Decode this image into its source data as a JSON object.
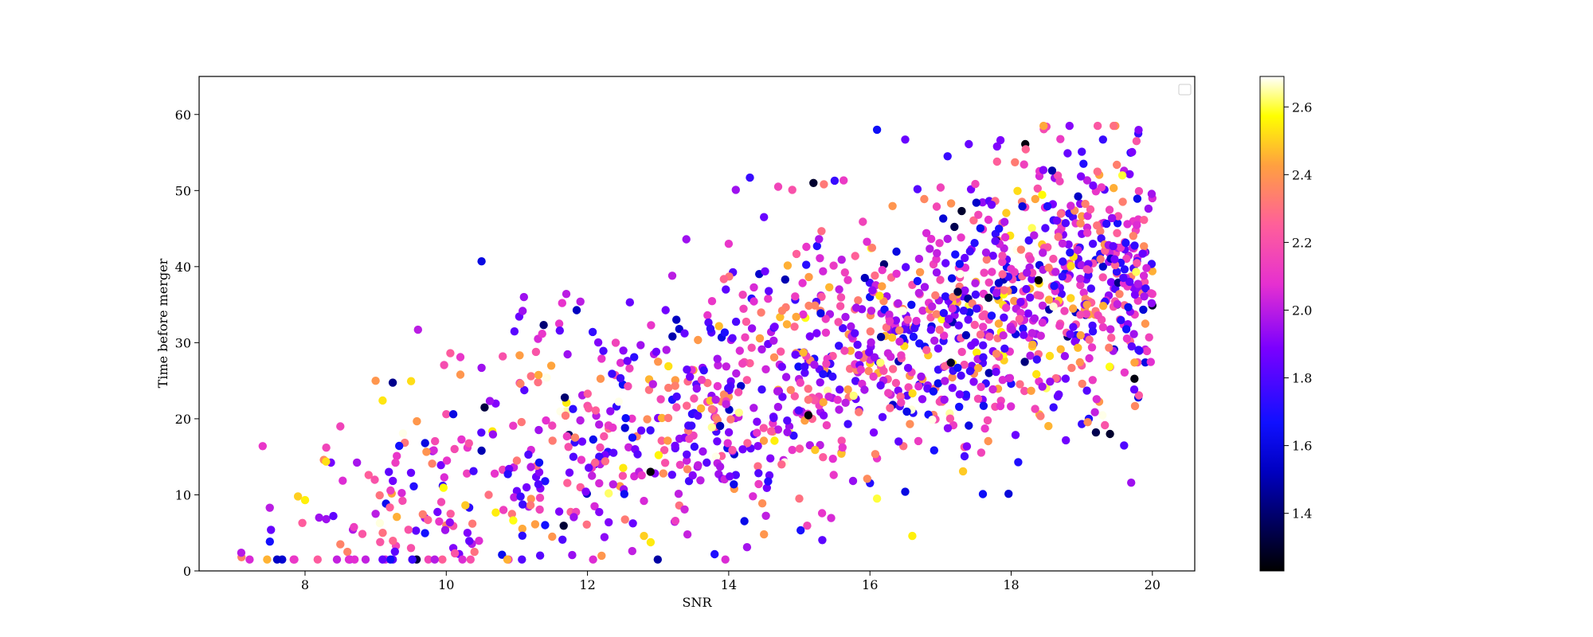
{
  "chart_data": {
    "type": "scatter",
    "title": "",
    "xlabel": "SNR",
    "ylabel": "Time before merger",
    "xlim": [
      6.5,
      20.6
    ],
    "ylim": [
      0,
      65
    ],
    "xticks": [
      8,
      10,
      12,
      14,
      16,
      18,
      20
    ],
    "yticks": [
      0,
      10,
      20,
      30,
      40,
      50,
      60
    ],
    "grid": false,
    "legend": {
      "location": "top-right",
      "entries": []
    },
    "colorbar": {
      "colormap": "gnuplot2",
      "range": [
        1.23,
        2.69
      ],
      "ticks": [
        1.4,
        1.6,
        1.8,
        2.0,
        2.2,
        2.4,
        2.6
      ],
      "tick_labels": [
        "1.4",
        "1.6",
        "1.8",
        "2.0",
        "2.2",
        "2.4",
        "2.6"
      ]
    },
    "colors": {
      "spine": "#000000",
      "background": "#ffffff"
    },
    "series": [
      {
        "marker": "circle",
        "point_count": 1500,
        "points": [
          [
            7.1,
            1.8,
            2.35
          ],
          [
            7.4,
            16.4,
            2.1
          ],
          [
            7.5,
            8.3,
            2.0
          ],
          [
            7.9,
            9.8,
            2.5
          ],
          [
            8.0,
            9.3,
            2.55
          ],
          [
            8.2,
            7.0,
            1.95
          ],
          [
            8.3,
            6.8,
            1.95
          ],
          [
            8.3,
            16.2,
            2.15
          ],
          [
            8.5,
            3.5,
            2.35
          ],
          [
            8.5,
            19.0,
            2.15
          ],
          [
            8.6,
            2.5,
            2.35
          ],
          [
            8.9,
            12.6,
            2.25
          ],
          [
            9.0,
            25.0,
            2.4
          ],
          [
            9.0,
            7.5,
            2.0
          ],
          [
            9.1,
            5.0,
            2.3
          ],
          [
            9.3,
            7.1,
            2.45
          ],
          [
            9.3,
            15.1,
            2.1
          ],
          [
            9.5,
            3.0,
            2.2
          ],
          [
            9.5,
            12.9,
            1.85
          ],
          [
            9.6,
            31.7,
            2.0
          ],
          [
            9.7,
            16.8,
            1.6
          ],
          [
            9.8,
            14.1,
            2.35
          ],
          [
            9.9,
            6.5,
            2.1
          ],
          [
            10.0,
            20.6,
            2.2
          ],
          [
            10.0,
            6.0,
            2.35
          ],
          [
            10.1,
            20.6,
            1.6
          ],
          [
            10.1,
            3.0,
            1.9
          ],
          [
            10.1,
            5.9,
            2.2
          ],
          [
            10.2,
            28.1,
            2.1
          ],
          [
            10.2,
            25.8,
            2.4
          ],
          [
            10.3,
            5.0,
            1.9
          ],
          [
            10.3,
            16.2,
            2.1
          ],
          [
            10.4,
            2.5,
            2.3
          ],
          [
            10.5,
            40.7,
            1.6
          ],
          [
            10.5,
            26.7,
            1.95
          ],
          [
            10.5,
            15.8,
            1.5
          ],
          [
            10.6,
            10.0,
            2.3
          ],
          [
            10.7,
            22.0,
            1.9
          ],
          [
            10.8,
            28.2,
            2.2
          ],
          [
            10.8,
            13.3,
            2.15
          ],
          [
            11.0,
            10.5,
            1.85
          ],
          [
            11.1,
            36.0,
            1.95
          ],
          [
            11.2,
            25.6,
            2.3
          ],
          [
            11.2,
            15.9,
            2.05
          ],
          [
            11.3,
            30.5,
            2.05
          ],
          [
            11.3,
            24.8,
            2.3
          ],
          [
            11.4,
            11.8,
            1.7
          ],
          [
            11.5,
            19.1,
            2.15
          ],
          [
            11.5,
            4.5,
            2.4
          ],
          [
            11.6,
            32.5,
            2.1
          ],
          [
            11.6,
            7.8,
            1.9
          ],
          [
            11.7,
            36.4,
            2.0
          ],
          [
            11.8,
            15.0,
            1.8
          ],
          [
            11.9,
            35.4,
            2.0
          ],
          [
            11.9,
            11.0,
            2.25
          ],
          [
            12.0,
            21.7,
            2.2
          ],
          [
            12.1,
            14.0,
            1.75
          ],
          [
            12.1,
            8.5,
            2.05
          ],
          [
            12.2,
            2.0,
            2.4
          ],
          [
            12.2,
            27.9,
            2.1
          ],
          [
            12.3,
            18.7,
            2.3
          ],
          [
            12.3,
            6.4,
            1.9
          ],
          [
            12.4,
            30.0,
            2.15
          ],
          [
            12.5,
            12.5,
            2.2
          ],
          [
            12.5,
            24.5,
            1.65
          ],
          [
            12.6,
            35.3,
            1.85
          ],
          [
            12.7,
            17.7,
            2.35
          ],
          [
            12.8,
            9.2,
            2.05
          ],
          [
            12.8,
            4.6,
            2.5
          ],
          [
            12.9,
            32.3,
            2.1
          ],
          [
            13.0,
            20.1,
            1.9
          ],
          [
            13.0,
            27.5,
            2.4
          ],
          [
            13.1,
            14.2,
            2.2
          ],
          [
            13.2,
            38.8,
            2.0
          ],
          [
            13.2,
            22.5,
            1.7
          ],
          [
            13.3,
            8.6,
            2.3
          ],
          [
            13.3,
            31.8,
            1.55
          ],
          [
            13.4,
            43.6,
            1.95
          ],
          [
            13.5,
            17.8,
            2.15
          ],
          [
            13.5,
            26.4,
            2.45
          ],
          [
            13.6,
            11.9,
            2.0
          ],
          [
            13.7,
            24.7,
            2.3
          ],
          [
            13.7,
            33.6,
            2.1
          ],
          [
            13.8,
            2.2,
            1.7
          ],
          [
            13.8,
            20.2,
            2.0
          ],
          [
            13.9,
            15.1,
            2.25
          ],
          [
            13.9,
            30.7,
            1.6
          ],
          [
            14.0,
            43.0,
            2.1
          ],
          [
            14.0,
            22.9,
            2.4
          ],
          [
            14.1,
            50.1,
            1.95
          ],
          [
            14.1,
            12.6,
            1.8
          ],
          [
            14.2,
            36.3,
            2.15
          ],
          [
            14.3,
            51.7,
            1.75
          ],
          [
            14.3,
            27.3,
            2.25
          ],
          [
            14.4,
            19.6,
            1.9
          ],
          [
            14.5,
            46.5,
            1.85
          ],
          [
            14.5,
            4.8,
            2.4
          ],
          [
            14.6,
            31.4,
            2.0
          ],
          [
            14.7,
            50.5,
            2.15
          ],
          [
            14.7,
            23.8,
            2.45
          ],
          [
            14.8,
            38.3,
            1.5
          ],
          [
            14.9,
            15.9,
            2.1
          ],
          [
            14.9,
            50.1,
            2.2
          ],
          [
            15.0,
            28.7,
            1.75
          ],
          [
            15.0,
            9.5,
            2.3
          ],
          [
            15.1,
            42.6,
            2.1
          ],
          [
            15.2,
            51.0,
            1.3
          ],
          [
            15.3,
            20.9,
            1.95
          ],
          [
            15.3,
            34.2,
            2.35
          ],
          [
            15.4,
            26.0,
            1.6
          ],
          [
            15.5,
            51.3,
            1.75
          ],
          [
            15.6,
            17.1,
            2.2
          ],
          [
            15.6,
            40.9,
            2.0
          ],
          [
            15.7,
            31.1,
            2.4
          ],
          [
            15.8,
            22.6,
            1.85
          ],
          [
            15.9,
            45.9,
            2.15
          ],
          [
            16.0,
            27.3,
            2.5
          ],
          [
            16.0,
            36.0,
            1.65
          ],
          [
            16.1,
            58.0,
            1.65
          ],
          [
            16.1,
            14.8,
            2.1
          ],
          [
            16.2,
            40.3,
            1.4
          ],
          [
            16.3,
            32.4,
            2.3
          ],
          [
            16.4,
            23.7,
            1.9
          ],
          [
            16.5,
            56.7,
            1.85
          ],
          [
            16.5,
            10.4,
            1.6
          ],
          [
            16.6,
            37.6,
            2.2
          ],
          [
            16.6,
            4.6,
            2.55
          ],
          [
            16.7,
            29.9,
            1.7
          ],
          [
            16.8,
            44.4,
            2.05
          ],
          [
            16.9,
            20.5,
            2.35
          ],
          [
            17.0,
            33.6,
            1.55
          ],
          [
            17.0,
            50.4,
            2.15
          ],
          [
            17.1,
            54.5,
            1.75
          ],
          [
            17.2,
            26.6,
            2.25
          ],
          [
            17.3,
            47.3,
            1.3
          ],
          [
            17.4,
            56.1,
            1.85
          ],
          [
            17.4,
            19.1,
            1.6
          ],
          [
            17.5,
            38.0,
            2.45
          ],
          [
            17.6,
            10.1,
            1.65
          ],
          [
            17.6,
            44.9,
            2.1
          ],
          [
            17.7,
            31.3,
            1.8
          ],
          [
            17.8,
            55.8,
            1.9
          ],
          [
            17.8,
            53.8,
            2.25
          ],
          [
            17.9,
            42.4,
            2.0
          ],
          [
            18.0,
            24.6,
            1.7
          ],
          [
            18.0,
            36.9,
            2.4
          ],
          [
            18.1,
            14.3,
            1.7
          ],
          [
            18.2,
            56.1,
            1.25
          ],
          [
            18.2,
            47.8,
            2.15
          ],
          [
            18.3,
            29.5,
            2.5
          ],
          [
            18.4,
            40.2,
            1.6
          ],
          [
            18.4,
            51.9,
            2.05
          ],
          [
            18.5,
            58.4,
            2.15
          ],
          [
            18.6,
            35.4,
            1.9
          ],
          [
            18.6,
            21.5,
            1.75
          ],
          [
            18.7,
            45.7,
            2.3
          ],
          [
            18.8,
            54.9,
            1.85
          ],
          [
            18.8,
            30.8,
            1.4
          ],
          [
            18.9,
            41.8,
            2.2
          ],
          [
            19.0,
            55.1,
            1.8
          ],
          [
            19.0,
            19.3,
            1.75
          ],
          [
            19.1,
            33.7,
            2.45
          ],
          [
            19.2,
            49.9,
            2.1
          ],
          [
            19.2,
            18.2,
            1.35
          ],
          [
            19.3,
            56.7,
            1.75
          ],
          [
            19.3,
            40.0,
            1.55
          ],
          [
            19.4,
            26.8,
            2.05
          ],
          [
            19.4,
            18.0,
            1.3
          ],
          [
            19.5,
            44.4,
            2.25
          ],
          [
            19.5,
            35.0,
            1.3
          ],
          [
            19.6,
            52.6,
            2.0
          ],
          [
            19.6,
            16.5,
            1.8
          ],
          [
            19.7,
            11.6,
            1.95
          ],
          [
            19.7,
            38.7,
            2.35
          ],
          [
            19.8,
            57.5,
            1.75
          ],
          [
            19.8,
            22.8,
            1.6
          ],
          [
            19.8,
            46.2,
            2.1
          ],
          [
            19.9,
            32.5,
            2.4
          ],
          [
            19.9,
            41.9,
            1.5
          ],
          [
            19.9,
            27.4,
            1.6
          ],
          [
            20.0,
            49.0,
            2.05
          ],
          [
            20.0,
            36.4,
            2.15
          ],
          [
            20.0,
            39.4,
            2.45
          ],
          [
            20.0,
            34.9,
            1.3
          ],
          [
            19.9,
            29.1,
            2.0
          ],
          [
            16.1,
            9.5,
            2.6
          ],
          [
            15.4,
            23.7,
            2.65
          ],
          [
            17.4,
            34.9,
            2.6
          ],
          [
            12.3,
            10.2,
            2.62
          ],
          [
            11.7,
            21.0,
            2.65
          ],
          [
            19.1,
            20.0,
            1.7
          ],
          [
            19.0,
            44.3,
            1.9
          ],
          [
            18.6,
            46.1,
            1.75
          ],
          [
            17.9,
            27.7,
            2.5
          ],
          [
            16.9,
            40.3,
            2.15
          ]
        ]
      }
    ]
  }
}
